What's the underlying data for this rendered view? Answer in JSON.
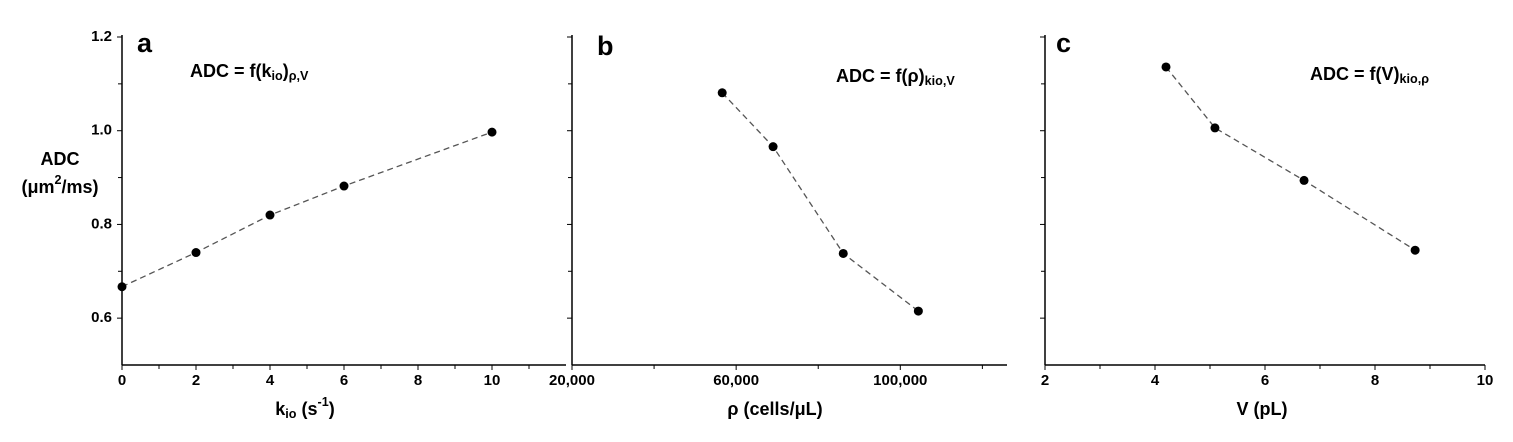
{
  "chart_data": [
    {
      "type": "scatter",
      "panel_label": "a",
      "annotation": [
        {
          "text": "ADC = f(k"
        },
        {
          "sub": "io"
        },
        {
          "text": ")"
        },
        {
          "sub": "ρ,V"
        }
      ],
      "xlabel": [
        {
          "text": "k"
        },
        {
          "sub": "io"
        },
        {
          "text": " (s"
        },
        {
          "sup": "-1"
        },
        {
          "text": ")"
        }
      ],
      "ylabel": [
        "ADC",
        [
          {
            "text": "(μm"
          },
          {
            "sup": "2"
          },
          {
            "text": "/ms)"
          }
        ]
      ],
      "x": [
        0,
        2,
        4,
        6,
        10
      ],
      "values": [
        0.667,
        0.74,
        0.82,
        0.882,
        0.997
      ],
      "color": "#000000",
      "line_color": "#555555",
      "line_style": "dashed",
      "xlim": [
        0,
        12
      ],
      "xticks": [
        0,
        2,
        4,
        6,
        8,
        10
      ],
      "xminorticks": [
        1,
        3,
        5,
        7,
        9,
        11
      ],
      "ylim": [
        0.5,
        1.2
      ],
      "yticks": [
        0.6,
        0.8,
        {
          "value": 1,
          "label": "1.0"
        },
        1.2
      ],
      "yminorticks": [
        0.7,
        0.9,
        1.1
      ],
      "ytick_labels": true
    },
    {
      "type": "scatter",
      "panel_label": "b",
      "annotation": [
        {
          "text": "ADC = f(ρ)"
        },
        {
          "sub": "kio,V"
        }
      ],
      "xlabel": [
        {
          "text": "ρ (cells/μL)"
        }
      ],
      "x": [
        56600,
        69000,
        86100,
        104400
      ],
      "values": [
        1.081,
        0.966,
        0.738,
        0.615
      ],
      "color": "#000000",
      "line_color": "#555555",
      "line_style": "dashed",
      "xlim": [
        20000,
        126000
      ],
      "xticks": [
        {
          "value": 20000,
          "label": "20,000"
        },
        {
          "value": 60000,
          "label": "60,000"
        },
        {
          "value": 100000,
          "label": "100,000"
        }
      ],
      "xminorticks": [
        40000,
        80000,
        120000
      ],
      "ylim": [
        0.5,
        1.2
      ],
      "yticks": [
        0.6,
        0.8,
        1,
        1.2
      ],
      "yminorticks": [
        0.7,
        0.9,
        1.1
      ],
      "ytick_labels": false
    },
    {
      "type": "scatter",
      "panel_label": "c",
      "annotation": [
        {
          "text": "ADC = f(V)"
        },
        {
          "sub": "kio,ρ"
        }
      ],
      "xlabel": [
        {
          "text": "V (pL)"
        }
      ],
      "x": [
        4.2,
        5.09,
        6.71,
        8.73
      ],
      "values": [
        1.136,
        1.006,
        0.894,
        0.745
      ],
      "color": "#000000",
      "line_color": "#555555",
      "line_style": "dashed",
      "xlim": [
        2,
        10
      ],
      "xticks": [
        2,
        4,
        6,
        8,
        10
      ],
      "xminorticks": [
        3,
        5,
        7,
        9
      ],
      "ylim": [
        0.5,
        1.2
      ],
      "yticks": [
        0.6,
        0.8,
        1,
        1.2
      ],
      "yminorticks": [
        0.7,
        0.9,
        1.1
      ],
      "ytick_labels": false
    }
  ]
}
